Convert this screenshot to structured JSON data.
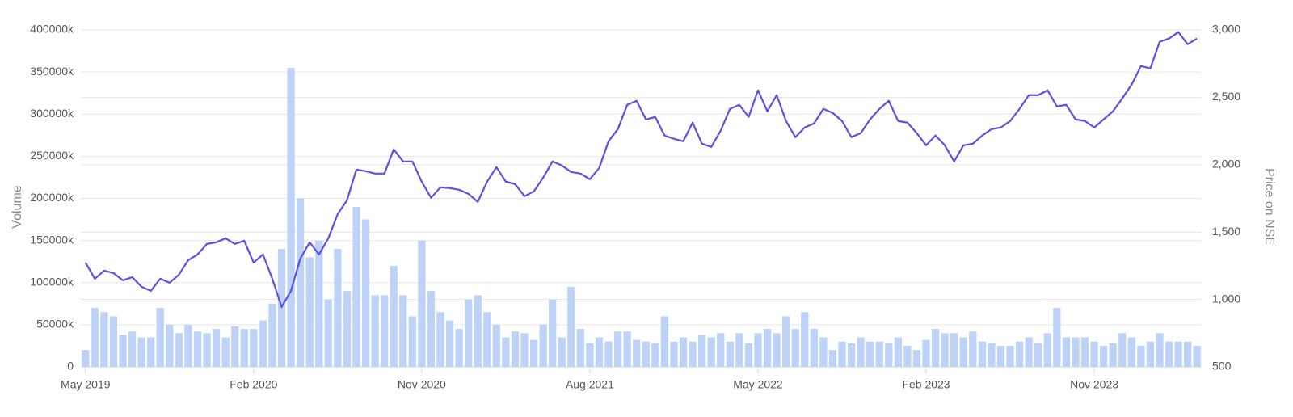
{
  "chart_data": {
    "type": "bar",
    "y_label": "Volume",
    "y2_label": "Price on NSE",
    "categories": [
      "May 2019",
      null,
      null,
      null,
      null,
      null,
      null,
      null,
      null,
      null,
      null,
      null,
      null,
      null,
      null,
      null,
      null,
      null,
      "Feb 2020",
      null,
      null,
      null,
      null,
      null,
      null,
      null,
      null,
      null,
      null,
      null,
      null,
      null,
      null,
      null,
      null,
      null,
      "Nov 2020",
      null,
      null,
      null,
      null,
      null,
      null,
      null,
      null,
      null,
      null,
      null,
      null,
      null,
      null,
      null,
      null,
      null,
      "Aug 2021",
      null,
      null,
      null,
      null,
      null,
      null,
      null,
      null,
      null,
      null,
      null,
      null,
      null,
      null,
      null,
      null,
      null,
      "May 2022",
      null,
      null,
      null,
      null,
      null,
      null,
      null,
      null,
      null,
      null,
      null,
      null,
      null,
      null,
      null,
      null,
      null,
      "Feb 2023",
      null,
      null,
      null,
      null,
      null,
      null,
      null,
      null,
      null,
      null,
      null,
      null,
      null,
      null,
      null,
      null,
      null,
      "Nov 2023",
      null,
      null,
      null,
      null,
      null,
      null,
      null,
      null,
      null,
      null,
      null
    ],
    "series": [
      {
        "type": "bar",
        "color": "#bcd2f7",
        "values": [
          20000,
          70000,
          65000,
          60000,
          38000,
          42000,
          35000,
          35000,
          70000,
          50000,
          40000,
          50000,
          42000,
          40000,
          45000,
          35000,
          48000,
          45000,
          45000,
          55000,
          75000,
          140000,
          355000,
          200000,
          130000,
          150000,
          80000,
          140000,
          90000,
          190000,
          175000,
          85000,
          85000,
          120000,
          85000,
          60000,
          150000,
          90000,
          65000,
          55000,
          45000,
          80000,
          85000,
          65000,
          50000,
          35000,
          42000,
          40000,
          32000,
          50000,
          80000,
          35000,
          95000,
          45000,
          28000,
          35000,
          30000,
          42000,
          42000,
          32000,
          30000,
          28000,
          60000,
          30000,
          35000,
          30000,
          38000,
          35000,
          40000,
          30000,
          40000,
          28000,
          40000,
          45000,
          40000,
          60000,
          45000,
          65000,
          45000,
          35000,
          20000,
          30000,
          28000,
          35000,
          30000,
          30000,
          28000,
          35000,
          25000,
          20000,
          32000,
          45000,
          40000,
          40000,
          35000,
          42000,
          30000,
          28000,
          25000,
          25000,
          30000,
          35000,
          28000,
          40000,
          70000,
          35000,
          35000,
          35000,
          30000,
          25000,
          28000,
          40000,
          35000,
          25000,
          30000,
          40000,
          30000,
          30000,
          30000,
          25000
        ]
      },
      {
        "type": "line",
        "axis": "y2",
        "color": "#5b52e0",
        "values": [
          1274,
          1154,
          1214,
          1196,
          1142,
          1166,
          1094,
          1064,
          1154,
          1124,
          1184,
          1292,
          1334,
          1412,
          1424,
          1454,
          1412,
          1436,
          1274,
          1334,
          1154,
          944,
          1064,
          1304,
          1424,
          1334,
          1454,
          1634,
          1736,
          1964,
          1952,
          1934,
          1934,
          2114,
          2024,
          2024,
          1874,
          1754,
          1832,
          1826,
          1814,
          1784,
          1724,
          1874,
          1982,
          1874,
          1856,
          1766,
          1802,
          1904,
          2024,
          1994,
          1946,
          1934,
          1892,
          1976,
          2174,
          2264,
          2444,
          2474,
          2336,
          2354,
          2216,
          2192,
          2174,
          2312,
          2156,
          2132,
          2252,
          2414,
          2444,
          2354,
          2552,
          2396,
          2516,
          2324,
          2204,
          2276,
          2306,
          2414,
          2384,
          2324,
          2204,
          2234,
          2336,
          2414,
          2474,
          2324,
          2312,
          2234,
          2144,
          2216,
          2144,
          2024,
          2144,
          2156,
          2216,
          2264,
          2276,
          2324,
          2414,
          2516,
          2516,
          2552,
          2432,
          2444,
          2336,
          2324,
          2276,
          2336,
          2396,
          2492,
          2594,
          2732,
          2714,
          2912,
          2936,
          2984,
          2894,
          2936
        ]
      }
    ],
    "ylim": [
      0,
      400000
    ],
    "yticks": [
      0,
      {
        "value": 50000,
        "label": "50000k"
      },
      {
        "value": 100000,
        "label": "100000k"
      },
      {
        "value": 150000,
        "label": "150000k"
      },
      {
        "value": 200000,
        "label": "200000k"
      },
      {
        "value": 250000,
        "label": "250000k"
      },
      {
        "value": 300000,
        "label": "300000k"
      },
      {
        "value": 350000,
        "label": "350000k"
      },
      {
        "value": 400000,
        "label": "400000k"
      }
    ],
    "y2lim": [
      500,
      3000
    ],
    "y2ticks": [
      500,
      {
        "value": 1000,
        "label": "1,000"
      },
      {
        "value": 1500,
        "label": "1,500"
      },
      {
        "value": 2000,
        "label": "2,000"
      },
      {
        "value": 2500,
        "label": "2,500"
      },
      {
        "value": 3000,
        "label": "3,000"
      }
    ],
    "grid": true
  }
}
